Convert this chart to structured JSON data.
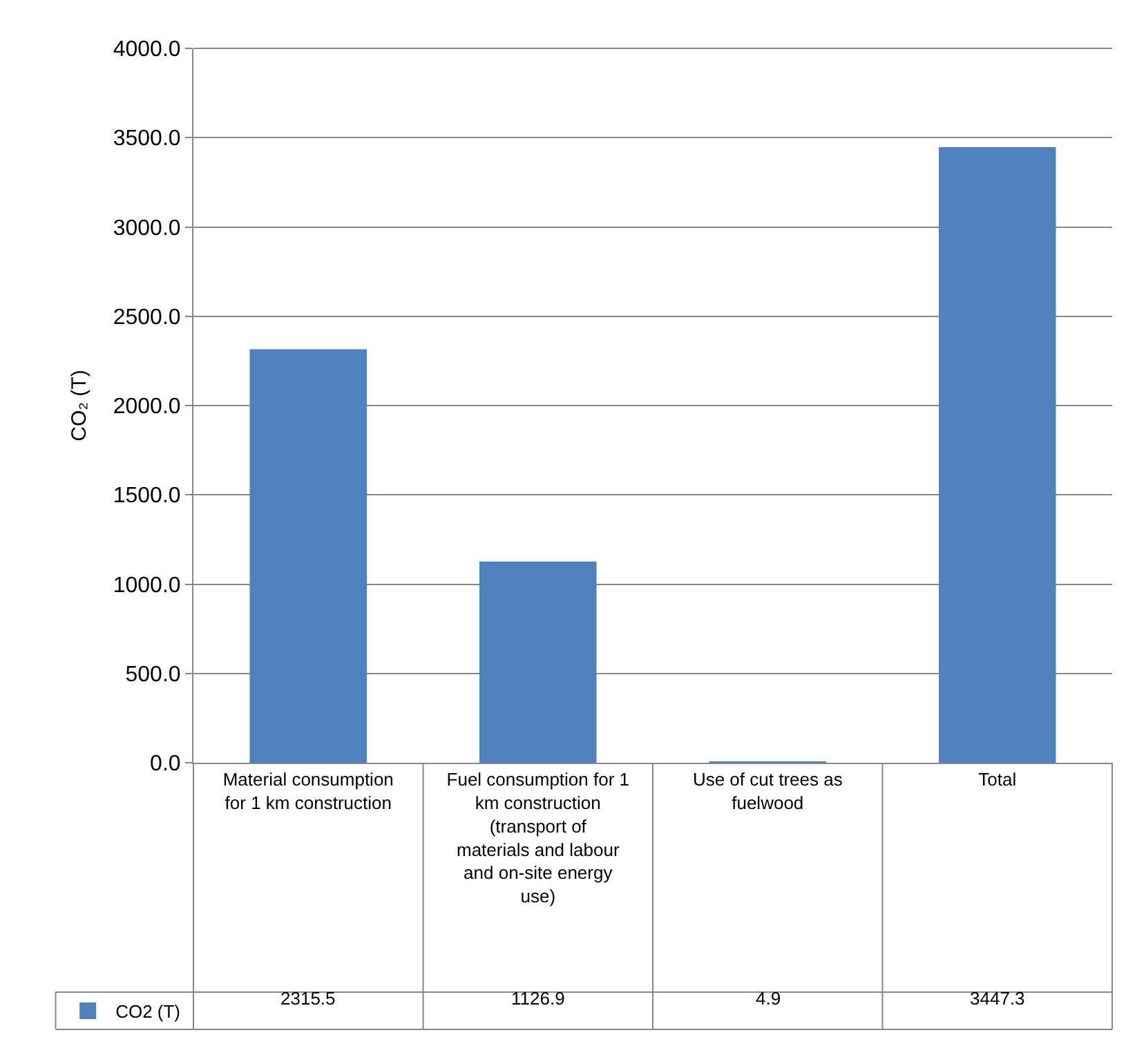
{
  "chart_data": {
    "type": "bar",
    "ylabel": "CO₂ (T)",
    "categories": [
      "Material consumption for 1 km construction",
      "Fuel consumption for 1 km construction (transport of materials and labour and on-site energy use)",
      "Use of cut trees as fuelwood",
      "Total"
    ],
    "series": [
      {
        "name": "CO2 (T)",
        "color": "#4f81bd",
        "values": [
          2315.5,
          1126.9,
          4.9,
          3447.3
        ]
      }
    ],
    "ylim": [
      0,
      4000
    ],
    "yticks": [
      {
        "value": 0,
        "label": "0.0"
      },
      {
        "value": 500,
        "label": "500.0"
      },
      {
        "value": 1000,
        "label": "1000.0"
      },
      {
        "value": 1500,
        "label": "1500.0"
      },
      {
        "value": 2000,
        "label": "2000.0"
      },
      {
        "value": 2500,
        "label": "2500.0"
      },
      {
        "value": 3000,
        "label": "3000.0"
      },
      {
        "value": 3500,
        "label": "3500.0"
      },
      {
        "value": 4000,
        "label": "4000.0"
      }
    ],
    "grid": "y",
    "data_labels": true,
    "legend": "bottom left"
  }
}
